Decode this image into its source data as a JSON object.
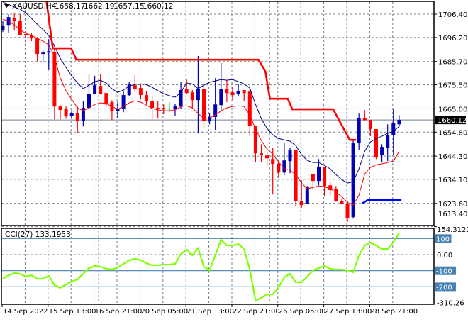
{
  "header": {
    "symbol": "XAUUSD,H4",
    "open": "1658.17",
    "high": "1662.19",
    "low": "1657.15",
    "close": "1660.12",
    "menu_icon": "triangle-down-icon"
  },
  "colors": {
    "bull": "#0000b4",
    "bear": "#ff0000",
    "doji": "#00c800",
    "ma_slow": "#000080",
    "ma_fast": "#ff0000",
    "stop_red": "#ff0000",
    "stop_blue": "#0000ff",
    "cci": "#7fff00",
    "level": "#4682b4",
    "grid": "#708090",
    "current_price_bg": "#000000"
  },
  "x_axis": {
    "labels": [
      {
        "index": 0,
        "text": "14 Sep 2022"
      },
      {
        "index": 8,
        "text": "15 Sep 13:00"
      },
      {
        "index": 16,
        "text": "16 Sep 21:00"
      },
      {
        "index": 24,
        "text": "20 Sep 05:00"
      },
      {
        "index": 32,
        "text": "21 Sep 13:00"
      },
      {
        "index": 40,
        "text": "22 Sep 21:00"
      },
      {
        "index": 48,
        "text": "26 Sep 05:00"
      },
      {
        "index": 56,
        "text": "27 Sep 13:00"
      },
      {
        "index": 64,
        "text": "28 Sep 21:00"
      }
    ]
  },
  "chart_data": [
    {
      "type": "candlestick",
      "ylim": [
        1613.9,
        1712.0
      ],
      "grid": true,
      "price_ticks": [
        "1706.40",
        "1696.20",
        "1685.70",
        "1675.50",
        "1665.00",
        "1654.80",
        "1644.30",
        "1634.10",
        "1623.60",
        "1613.40"
      ],
      "current_price": "1660.12",
      "candles": [
        [
          1699.6,
          1703.3,
          1698.6,
          1701.4
        ],
        [
          1701.7,
          1706.4,
          1698.3,
          1705.1
        ],
        [
          1704.8,
          1707.0,
          1699.2,
          1703.3
        ],
        [
          1703.3,
          1706.4,
          1697.1,
          1697.4
        ],
        [
          1697.7,
          1698.6,
          1693.3,
          1697.1
        ],
        [
          1697.1,
          1698.3,
          1694.6,
          1695.8
        ],
        [
          1695.8,
          1696.4,
          1685.9,
          1689.0
        ],
        [
          1689.0,
          1690.5,
          1685.3,
          1689.6
        ],
        [
          1689.6,
          1695.5,
          1682.2,
          1690.2
        ],
        [
          1689.9,
          1691.8,
          1660.4,
          1666.0
        ],
        [
          1666.0,
          1666.6,
          1660.4,
          1664.5
        ],
        [
          1665.1,
          1666.0,
          1660.7,
          1662.0
        ],
        [
          1662.0,
          1664.5,
          1660.4,
          1663.2
        ],
        [
          1663.2,
          1666.0,
          1654.5,
          1659.8
        ],
        [
          1659.8,
          1668.2,
          1657.3,
          1665.4
        ],
        [
          1665.4,
          1680.3,
          1664.5,
          1671.6
        ],
        [
          1671.6,
          1679.4,
          1671.3,
          1675.3
        ],
        [
          1675.0,
          1680.0,
          1671.3,
          1671.6
        ],
        [
          1671.9,
          1671.9,
          1666.0,
          1666.9
        ],
        [
          1667.9,
          1668.8,
          1660.1,
          1664.1
        ],
        [
          1664.1,
          1668.2,
          1661.0,
          1665.1
        ],
        [
          1665.1,
          1672.9,
          1663.5,
          1671.0
        ],
        [
          1671.0,
          1676.6,
          1670.7,
          1675.9
        ],
        [
          1675.3,
          1679.7,
          1672.9,
          1673.8
        ],
        [
          1674.1,
          1675.9,
          1669.1,
          1671.0
        ],
        [
          1671.0,
          1672.9,
          1666.9,
          1668.2
        ],
        [
          1668.2,
          1670.7,
          1660.4,
          1665.4
        ],
        [
          1665.4,
          1668.2,
          1660.7,
          1665.1
        ],
        [
          1665.4,
          1666.9,
          1662.6,
          1665.1
        ],
        [
          1665.1,
          1667.9,
          1663.5,
          1665.1
        ],
        [
          1664.8,
          1667.3,
          1661.7,
          1666.3
        ],
        [
          1666.0,
          1676.6,
          1665.1,
          1673.2
        ],
        [
          1673.5,
          1677.8,
          1671.3,
          1671.9
        ],
        [
          1672.2,
          1673.2,
          1665.4,
          1668.8
        ],
        [
          1668.8,
          1688.1,
          1654.2,
          1673.8
        ],
        [
          1673.5,
          1673.5,
          1656.7,
          1659.8
        ],
        [
          1659.8,
          1662.9,
          1658.2,
          1661.4
        ],
        [
          1661.4,
          1678.4,
          1655.8,
          1666.9
        ],
        [
          1666.6,
          1685.0,
          1664.5,
          1673.5
        ],
        [
          1673.5,
          1677.5,
          1667.9,
          1671.9
        ],
        [
          1672.2,
          1674.7,
          1668.8,
          1671.0
        ],
        [
          1671.3,
          1675.9,
          1670.4,
          1672.9
        ],
        [
          1673.2,
          1673.2,
          1668.2,
          1671.9
        ],
        [
          1672.5,
          1674.4,
          1653.0,
          1657.6
        ],
        [
          1657.6,
          1657.6,
          1641.8,
          1645.5
        ],
        [
          1645.5,
          1649.5,
          1641.8,
          1644.9
        ],
        [
          1644.6,
          1645.8,
          1639.9,
          1643.3
        ],
        [
          1643.0,
          1648.0,
          1627.5,
          1640.9
        ],
        [
          1640.9,
          1642.4,
          1634.9,
          1637.1
        ],
        [
          1637.1,
          1649.9,
          1635.9,
          1642.4
        ],
        [
          1642.1,
          1648.0,
          1636.8,
          1646.8
        ],
        [
          1646.8,
          1646.8,
          1622.2,
          1624.7
        ],
        [
          1624.7,
          1633.7,
          1621.6,
          1622.8
        ],
        [
          1623.5,
          1631.2,
          1623.5,
          1630.9
        ],
        [
          1636.5,
          1636.5,
          1629.4,
          1633.4
        ],
        [
          1633.4,
          1643.0,
          1631.5,
          1639.6
        ],
        [
          1639.6,
          1639.6,
          1626.9,
          1631.2
        ],
        [
          1631.5,
          1633.1,
          1627.2,
          1629.4
        ],
        [
          1630.0,
          1631.2,
          1624.4,
          1624.4
        ],
        [
          1624.7,
          1625.6,
          1623.5,
          1623.5
        ],
        [
          1623.5,
          1624.7,
          1615.4,
          1617.2
        ],
        [
          1617.6,
          1651.4,
          1616.9,
          1649.9
        ],
        [
          1649.9,
          1662.9,
          1647.1,
          1661.0
        ],
        [
          1661.0,
          1664.5,
          1659.5,
          1660.1
        ],
        [
          1660.1,
          1660.1,
          1653.0,
          1656.1
        ],
        [
          1656.1,
          1656.1,
          1643.0,
          1643.7
        ],
        [
          1644.6,
          1649.5,
          1641.5,
          1648.3
        ],
        [
          1648.0,
          1658.2,
          1642.1,
          1653.6
        ],
        [
          1653.6,
          1665.1,
          1644.9,
          1658.6
        ],
        [
          1658.17,
          1662.19,
          1657.15,
          1660.12
        ]
      ],
      "series": [
        {
          "color_key": "ma_slow",
          "values": [
            1711.7,
            1710.7,
            1709.5,
            1708.6,
            1707.0,
            1704.5,
            1702.0,
            1699.6,
            1697.1,
            1692.4,
            1687.1,
            1683.1,
            1679.4,
            1676.3,
            1673.8,
            1675.3,
            1676.9,
            1677.5,
            1676.3,
            1673.8,
            1672.2,
            1673.2,
            1675.0,
            1675.6,
            1675.9,
            1675.6,
            1674.4,
            1672.9,
            1671.6,
            1670.7,
            1670.1,
            1672.2,
            1676.3,
            1675.9,
            1673.8,
            1675.3,
            1676.6,
            1677.2,
            1677.8,
            1677.5,
            1677.8,
            1676.9,
            1675.9,
            1674.1,
            1666.9,
            1660.7,
            1656.4,
            1653.6,
            1652.0,
            1651.4,
            1650.8,
            1648.9,
            1644.9,
            1642.4,
            1641.5,
            1641.5,
            1640.2,
            1638.7,
            1636.2,
            1634.0,
            1632.5,
            1633.1,
            1638.7,
            1646.4,
            1650.5,
            1652.0,
            1653.0,
            1654.2,
            1655.1,
            1657.3
          ]
        },
        {
          "color_key": "ma_fast",
          "values": [
            1704.2,
            1703.3,
            1701.7,
            1699.6,
            1698.0,
            1697.1,
            1695.8,
            1694.6,
            1693.0,
            1687.8,
            1678.4,
            1672.9,
            1669.1,
            1665.4,
            1664.1,
            1665.4,
            1666.9,
            1667.6,
            1667.3,
            1666.0,
            1664.8,
            1666.0,
            1667.6,
            1668.5,
            1667.9,
            1666.6,
            1665.1,
            1664.5,
            1664.1,
            1664.1,
            1664.5,
            1666.0,
            1666.3,
            1665.4,
            1662.9,
            1660.7,
            1661.0,
            1662.3,
            1664.1,
            1665.4,
            1666.0,
            1666.3,
            1666.0,
            1662.3,
            1656.1,
            1651.1,
            1647.4,
            1645.2,
            1641.8,
            1638.7,
            1638.1,
            1636.2,
            1632.5,
            1630.0,
            1630.6,
            1631.2,
            1630.9,
            1630.0,
            1628.4,
            1626.6,
            1624.1,
            1622.8,
            1627.2,
            1636.5,
            1639.3,
            1640.5,
            1640.9,
            1641.5,
            1642.1,
            1646.4
          ]
        }
      ],
      "stop_lines": [
        {
          "color_key": "stop_red",
          "points": [
            [
              7.6,
              1712.0
            ],
            [
              8.7,
              1691.5
            ],
            [
              11.9,
              1691.5
            ],
            [
              12.8,
              1686.5
            ],
            [
              44.5,
              1686.5
            ],
            [
              45.7,
              1681.5
            ],
            [
              46.5,
              1669.4
            ],
            [
              49.6,
              1669.4
            ],
            [
              50.4,
              1664.8
            ],
            [
              57.5,
              1664.8
            ],
            [
              60.4,
              1651.4
            ],
            [
              61.5,
              1651.4
            ]
          ]
        },
        {
          "color_key": "stop_blue",
          "points": [
            [
              62.5,
              1623.5
            ],
            [
              63.5,
              1625.0
            ],
            [
              69.4,
              1625.0
            ]
          ]
        }
      ]
    },
    {
      "type": "line",
      "title": "CCI(27) 133.1953",
      "ylim": [
        -310.26,
        154.3122
      ],
      "tick_labels": [
        {
          "value": 154.3122,
          "text": "154.3122"
        },
        {
          "value": 0,
          "text": "0.00"
        },
        {
          "value": -310.26,
          "text": "-310.26"
        }
      ],
      "levels": [
        {
          "value": 100,
          "text": "100"
        },
        {
          "value": -100,
          "text": "-100"
        },
        {
          "value": -200,
          "text": "-200"
        }
      ],
      "zero_line": 0,
      "values": [
        -150,
        -128,
        -115,
        -119,
        -137,
        -128,
        -150,
        -150,
        -132,
        -189,
        -207,
        -185,
        -167,
        -154,
        -119,
        -84,
        -70,
        -75,
        -88,
        -93,
        -79,
        -57,
        -35,
        -26,
        -35,
        -53,
        -66,
        -66,
        -62,
        -62,
        -57,
        4,
        31,
        -4,
        40,
        -75,
        -97,
        -4,
        93,
        57,
        57,
        66,
        35,
        -93,
        -286,
        -269,
        -247,
        -247,
        -203,
        -141,
        -119,
        -172,
        -172,
        -137,
        -97,
        -84,
        -70,
        -88,
        -93,
        -93,
        -97,
        -110,
        -4,
        57,
        75,
        57,
        35,
        35,
        79,
        133.2
      ]
    }
  ]
}
